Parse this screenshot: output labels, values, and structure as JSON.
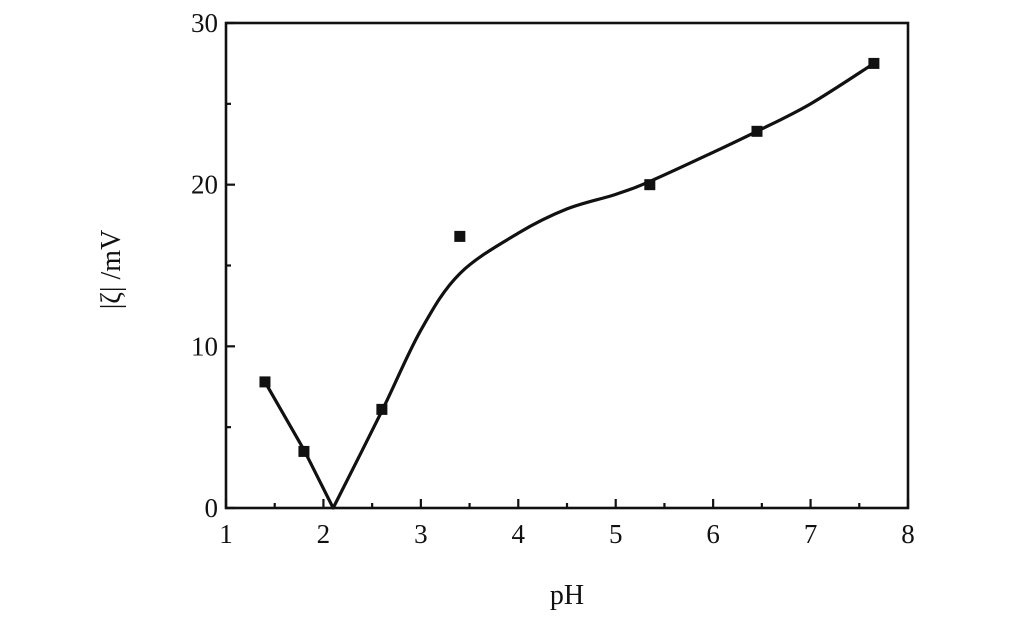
{
  "chart_data": {
    "type": "line",
    "xlabel": "pH",
    "ylabel": "|ζ| /mV",
    "xlim": [
      1,
      8
    ],
    "ylim": [
      0,
      30
    ],
    "xticks": [
      1,
      2,
      3,
      4,
      5,
      6,
      7,
      8
    ],
    "yticks": [
      0,
      10,
      20,
      30
    ],
    "grid": false,
    "series": [
      {
        "marker": "square",
        "x": [
          1.4,
          1.8,
          2.6,
          3.4,
          5.35,
          6.45,
          7.65
        ],
        "y": [
          7.8,
          3.5,
          6.1,
          16.8,
          20.0,
          23.3,
          27.5
        ]
      }
    ],
    "fit_curve": {
      "x": [
        1.4,
        1.8,
        2.1,
        2.6,
        3.0,
        3.4,
        4.0,
        4.5,
        5.0,
        5.35,
        6.0,
        6.45,
        7.0,
        7.65
      ],
      "y": [
        7.8,
        3.6,
        0.0,
        6.0,
        11.0,
        14.5,
        17.0,
        18.5,
        19.4,
        20.2,
        22.0,
        23.3,
        25.0,
        27.5
      ]
    }
  }
}
